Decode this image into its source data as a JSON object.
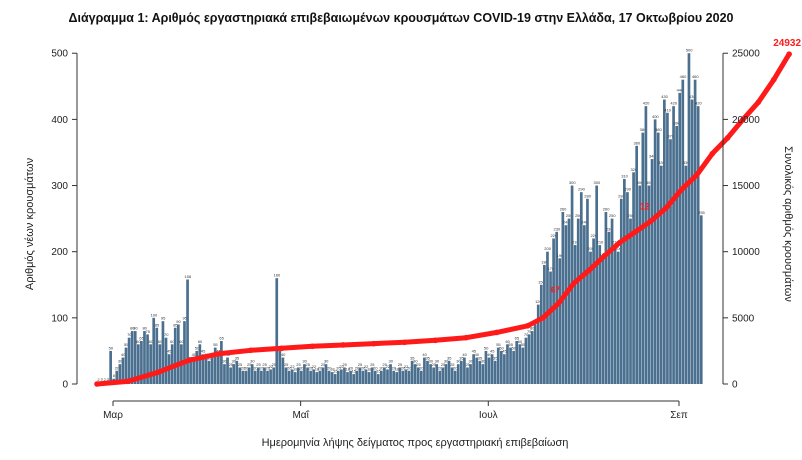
{
  "chart_data": {
    "type": "bar",
    "title": "Διάγραμμα 1: Αριθμός εργαστηριακά επιβεβαιωμένων κρουσμάτων COVID-19 στην Ελλάδα, 17 Οκτωβρίου 2020",
    "xlabel": "Ημερομηνία λήψης δείγματος προς εργαστηριακή επιβεβαίωση",
    "ylabel": "Αριθμός νέων κρουσμάτων",
    "y2label": "Συνολικός αριθμός κρουσμάτων",
    "ylim": [
      0,
      520
    ],
    "y2lim": [
      0,
      26000
    ],
    "yticks": [
      0,
      100,
      200,
      300,
      400,
      500
    ],
    "y2ticks": [
      0,
      5000,
      10000,
      15000,
      20000,
      25000
    ],
    "xticks": [
      {
        "day": 0,
        "label": "Μαρ"
      },
      {
        "day": 61,
        "label": "Μαΐ"
      },
      {
        "day": 122,
        "label": "Ιουλ"
      },
      {
        "day": 184,
        "label": "Σεπ"
      }
    ],
    "x_start_label": "Μαρ",
    "series": [
      {
        "name": "Αριθμός νέων κρουσμάτων",
        "kind": "bar",
        "color": "#4a6f8f",
        "values": [
          2,
          3,
          2,
          3,
          50,
          8,
          20,
          30,
          40,
          55,
          70,
          80,
          80,
          60,
          65,
          80,
          75,
          60,
          100,
          85,
          60,
          95,
          70,
          45,
          60,
          85,
          90,
          60,
          95,
          158,
          35,
          40,
          50,
          60,
          45,
          40,
          35,
          40,
          55,
          45,
          65,
          30,
          40,
          25,
          30,
          35,
          25,
          20,
          20,
          25,
          30,
          20,
          25,
          20,
          25,
          20,
          22,
          25,
          160,
          50,
          40,
          25,
          20,
          22,
          18,
          25,
          20,
          30,
          25,
          20,
          22,
          18,
          20,
          25,
          30,
          20,
          18,
          15,
          20,
          22,
          25,
          18,
          20,
          15,
          20,
          25,
          20,
          22,
          18,
          25,
          20,
          15,
          20,
          25,
          22,
          30,
          20,
          18,
          25,
          20,
          22,
          20,
          35,
          30,
          25,
          20,
          40,
          35,
          30,
          25,
          30,
          20,
          25,
          30,
          35,
          25,
          20,
          30,
          35,
          40,
          25,
          30,
          45,
          40,
          35,
          30,
          50,
          40,
          45,
          35,
          55,
          50,
          45,
          60,
          55,
          50,
          65,
          60,
          55,
          70,
          75,
          80,
          90,
          120,
          150,
          180,
          200,
          170,
          220,
          230,
          190,
          260,
          240,
          250,
          300,
          210,
          250,
          290,
          240,
          280,
          200,
          220,
          300,
          210,
          190,
          260,
          230,
          250,
          210,
          200,
          280,
          310,
          290,
          250,
          320,
          360,
          300,
          380,
          420,
          300,
          340,
          400,
          380,
          330,
          430,
          410,
          370,
          420,
          390,
          440,
          460,
          330,
          500,
          430,
          460,
          420,
          255
        ]
      },
      {
        "name": "Συνολικός αριθμός κρουσμάτων",
        "kind": "line",
        "color": "#ff1a1a",
        "points": [
          [
            0,
            0
          ],
          [
            10,
            200
          ],
          [
            20,
            900
          ],
          [
            30,
            1800
          ],
          [
            40,
            2300
          ],
          [
            50,
            2550
          ],
          [
            60,
            2700
          ],
          [
            70,
            2850
          ],
          [
            80,
            2950
          ],
          [
            90,
            3050
          ],
          [
            100,
            3150
          ],
          [
            110,
            3300
          ],
          [
            120,
            3500
          ],
          [
            130,
            3900
          ],
          [
            140,
            4400
          ],
          [
            145,
            5000
          ],
          [
            150,
            6100
          ],
          [
            155,
            7600
          ],
          [
            160,
            8600
          ],
          [
            165,
            9700
          ],
          [
            170,
            10700
          ],
          [
            175,
            11500
          ],
          [
            180,
            12300
          ],
          [
            185,
            13300
          ],
          [
            190,
            14700
          ],
          [
            195,
            15800
          ],
          [
            200,
            17400
          ],
          [
            205,
            18600
          ],
          [
            210,
            20000
          ],
          [
            215,
            21300
          ],
          [
            220,
            23000
          ],
          [
            225,
            24932
          ]
        ]
      }
    ],
    "annotations": [
      "24932",
      "12",
      "67"
    ]
  }
}
